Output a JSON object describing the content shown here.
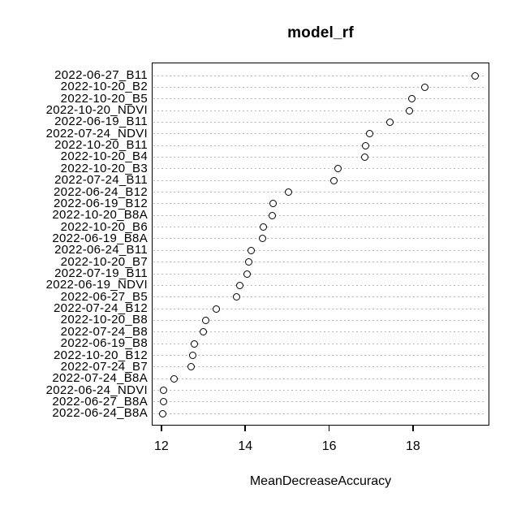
{
  "chart_data": {
    "type": "scatter",
    "subtype": "dotchart-variable-importance",
    "title": "model_rf",
    "xlabel": "MeanDecreaseAccuracy",
    "ylabel": "",
    "categories": [
      "2022-06-27_B11",
      "2022-10-20_B2",
      "2022-10-20_B5",
      "2022-10-20_NDVI",
      "2022-06-19_B11",
      "2022-07-24_NDVI",
      "2022-10-20_B11",
      "2022-10-20_B4",
      "2022-10-20_B3",
      "2022-07-24_B11",
      "2022-06-24_B12",
      "2022-06-19_B12",
      "2022-10-20_B8A",
      "2022-10-20_B6",
      "2022-06-19_B8A",
      "2022-06-24_B11",
      "2022-10-20_B7",
      "2022-07-19_B11",
      "2022-06-19_NDVI",
      "2022-06-27_B5",
      "2022-07-24_B12",
      "2022-10-20_B8",
      "2022-07-24_B8",
      "2022-06-19_B8",
      "2022-10-20_B12",
      "2022-07-24_B7",
      "2022-07-24_B8A",
      "2022-06-24_NDVI",
      "2022-06-27_B8A",
      "2022-06-24_B8A"
    ],
    "values": [
      19.49,
      18.29,
      17.98,
      17.91,
      17.44,
      16.96,
      16.86,
      16.84,
      16.22,
      16.12,
      15.04,
      14.66,
      14.64,
      14.44,
      14.41,
      14.15,
      14.08,
      14.04,
      13.86,
      13.79,
      13.31,
      13.05,
      12.99,
      12.79,
      12.74,
      12.7,
      12.31,
      12.06,
      12.06,
      12.04
    ],
    "x_ticks": [
      12,
      14,
      16,
      18
    ],
    "xlim": [
      11.77,
      19.82
    ],
    "grid": "horizontal-dashed",
    "legend": "none",
    "point_style": "open-circle",
    "colors": {
      "background": "#ffffff",
      "text": "#000000",
      "box": "#000000",
      "grid": "#b9b9b9",
      "point_stroke": "#000000",
      "point_fill": "#ffffff"
    }
  }
}
